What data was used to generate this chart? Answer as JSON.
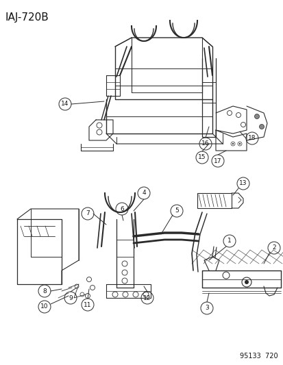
{
  "title_code": "IAJ-720B",
  "footer_code": "95133  720",
  "bg_color": "#ffffff",
  "line_color": "#2a2a2a",
  "label_color": "#111111",
  "title_fontsize": 11,
  "label_fontsize": 7,
  "footer_fontsize": 7,
  "fig_width": 4.14,
  "fig_height": 5.33,
  "dpi": 100
}
